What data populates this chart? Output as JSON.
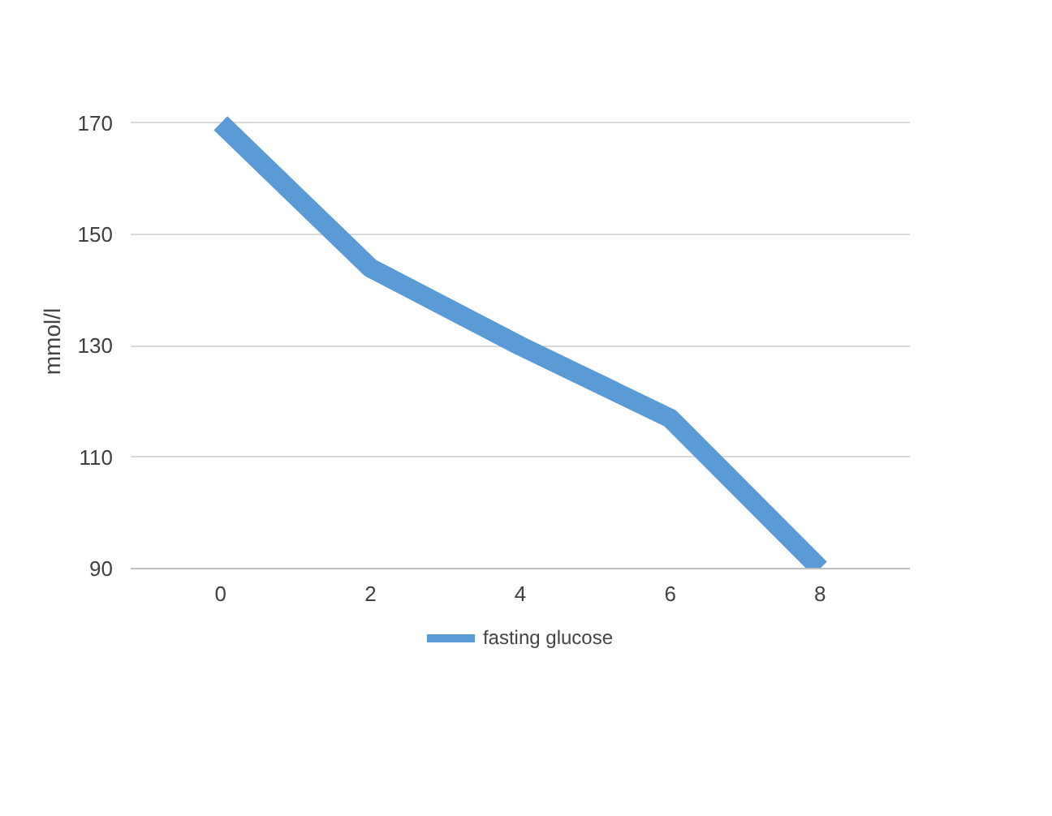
{
  "chart_data": {
    "type": "line",
    "ylabel": "mmol/l",
    "categories": [
      "0",
      "2",
      "4",
      "6",
      "8"
    ],
    "series": [
      {
        "name": "fasting glucose",
        "color": "#5b9bd5",
        "values": [
          170,
          144,
          130,
          117,
          90
        ]
      }
    ],
    "ylim": [
      90,
      170
    ],
    "yticks": [
      90,
      110,
      130,
      150,
      170
    ],
    "grid": "y",
    "legend": "bottom",
    "marker": "none",
    "line_style": "solid"
  }
}
